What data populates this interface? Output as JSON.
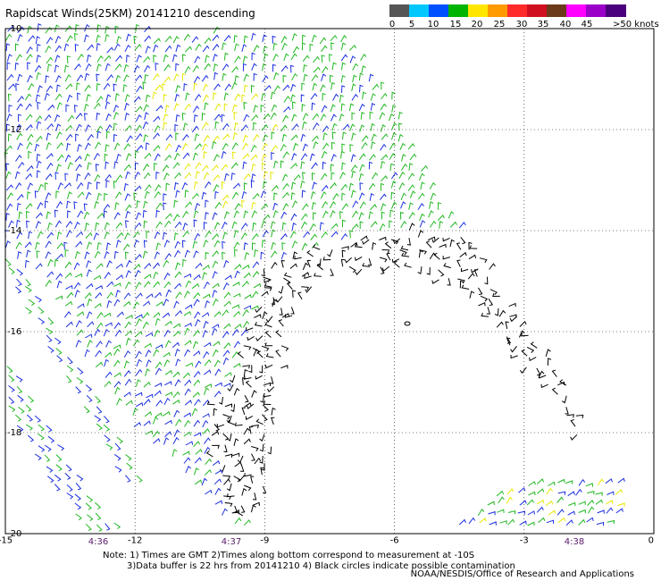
{
  "title": "Rapidscat Winds(25KM) 20141210 descending",
  "legend": {
    "colors": [
      "#555555",
      "#00c8ff",
      "#0050ff",
      "#00b400",
      "#ffe600",
      "#ff9a00",
      "#ff2a2a",
      "#d01020",
      "#6b3a1a",
      "#ff00ff",
      "#9b00c8",
      "#4a007a"
    ],
    "labels": [
      "0",
      "5",
      "10",
      "15",
      "20",
      "25",
      "30",
      "35",
      "40",
      "45",
      ">50 knots"
    ]
  },
  "axes": {
    "x_ticks": [
      "-15",
      "-12",
      "-9",
      "-6",
      "-3",
      "0"
    ],
    "y_ticks": [
      "-10",
      "-12",
      "-14",
      "-16",
      "-18",
      "-20"
    ],
    "x_range": [
      -15,
      0
    ],
    "y_range": [
      -20,
      -10
    ]
  },
  "times": [
    "4:36",
    "4:37",
    "4:38"
  ],
  "notes": {
    "line1": "Note: 1) Times are GMT 2)Times along bottom correspond to measurement at -10S",
    "line2": "3)Data buffer is 22 hrs from 20141210 4) Black circles indicate possible contamination"
  },
  "credit": "NOAA/NESDIS/Office of Research and Applications",
  "wind_colors": {
    "blue": "#1a2ee0",
    "green": "#1fb81f",
    "yellow": "#e6e600",
    "black": "#000000"
  }
}
